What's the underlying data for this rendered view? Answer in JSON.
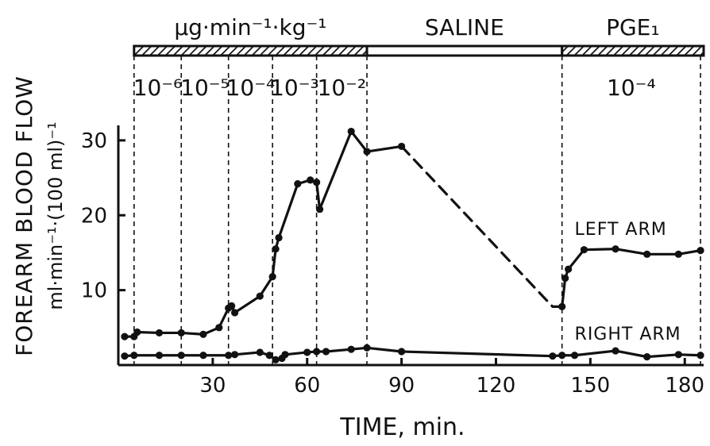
{
  "chart_data": {
    "type": "line",
    "xlabel": "TIME, min.",
    "ylabel": "FOREARM BLOOD FLOW",
    "ylabel_units": "ml·min⁻¹·(100 ml)⁻¹",
    "xlim": [
      0,
      186
    ],
    "ylim": [
      0,
      32
    ],
    "x_ticks": [
      30,
      60,
      90,
      120,
      150,
      180
    ],
    "y_ticks": [
      10,
      20,
      30
    ],
    "grid": false,
    "periods": [
      {
        "label": "µg·min⁻¹·kg⁻¹",
        "x_start": 5,
        "x_end": 79,
        "fill": "hatched"
      },
      {
        "label": "SALINE",
        "x_start": 79,
        "x_end": 141,
        "fill": "open"
      },
      {
        "label": "PGE₁",
        "x_start": 141,
        "x_end": 186,
        "fill": "hatched"
      }
    ],
    "dose_boundaries": [
      5,
      20,
      35,
      49,
      63,
      79,
      141,
      185
    ],
    "doses": [
      {
        "label": "10⁻⁶",
        "x": 12.5
      },
      {
        "label": "10⁻⁵",
        "x": 27.5
      },
      {
        "label": "10⁻⁴",
        "x": 42
      },
      {
        "label": "10⁻³",
        "x": 56
      },
      {
        "label": "10⁻²",
        "x": 71
      },
      {
        "label": "10⁻⁴",
        "x": 163
      }
    ],
    "series": [
      {
        "name": "LEFT ARM",
        "label_pos": [
          145,
          17.4
        ],
        "segments": [
          {
            "style": "solid",
            "points": [
              [
                2,
                3.8
              ],
              [
                5,
                3.8
              ],
              [
                6,
                4.4
              ],
              [
                13,
                4.3
              ],
              [
                20,
                4.3
              ],
              [
                27,
                4.1
              ],
              [
                32,
                5
              ],
              [
                35,
                7.6
              ],
              [
                36,
                7.9
              ],
              [
                37,
                7
              ],
              [
                45,
                9.2
              ],
              [
                49,
                11.8
              ],
              [
                50,
                15.5
              ],
              [
                51,
                17
              ],
              [
                57,
                24.2
              ],
              [
                61,
                24.7
              ],
              [
                63,
                24.4
              ],
              [
                64,
                20.8
              ],
              [
                74,
                31.2
              ],
              [
                79,
                28.5
              ],
              [
                90,
                29.2
              ]
            ]
          },
          {
            "style": "dashed",
            "points": [
              [
                90,
                29.2
              ],
              [
                138,
                7.8
              ],
              [
                141,
                7.8
              ]
            ]
          },
          {
            "style": "solid",
            "points": [
              [
                141,
                7.8
              ],
              [
                142,
                11.6
              ],
              [
                143,
                12.8
              ],
              [
                148,
                15.4
              ],
              [
                158,
                15.5
              ],
              [
                168,
                14.8
              ],
              [
                178,
                14.8
              ],
              [
                185,
                15.3
              ]
            ]
          }
        ]
      },
      {
        "name": "RIGHT ARM",
        "label_pos": [
          145,
          3.4
        ],
        "segments": [
          {
            "style": "solid",
            "points": [
              [
                2,
                1.2
              ],
              [
                5,
                1.3
              ],
              [
                13,
                1.3
              ],
              [
                20,
                1.3
              ],
              [
                27,
                1.3
              ],
              [
                35,
                1.3
              ],
              [
                37,
                1.4
              ],
              [
                45,
                1.7
              ],
              [
                48,
                1.3
              ],
              [
                50,
                0.7
              ],
              [
                52,
                0.9
              ],
              [
                53,
                1.4
              ],
              [
                60,
                1.7
              ],
              [
                63,
                1.8
              ],
              [
                66,
                1.8
              ],
              [
                74,
                2.1
              ],
              [
                79,
                2.3
              ],
              [
                90,
                1.8
              ],
              [
                138,
                1.2
              ],
              [
                141,
                1.3
              ],
              [
                145,
                1.3
              ],
              [
                158,
                1.9
              ],
              [
                168,
                1.1
              ],
              [
                178,
                1.4
              ],
              [
                185,
                1.3
              ]
            ]
          }
        ]
      }
    ]
  }
}
